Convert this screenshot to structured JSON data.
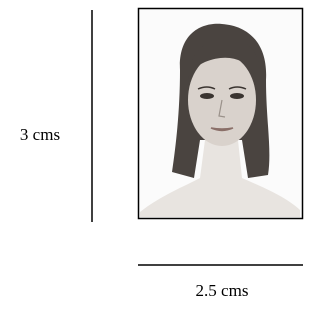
{
  "labels": {
    "height": "3 cms",
    "width": "2.5 cms"
  }
}
